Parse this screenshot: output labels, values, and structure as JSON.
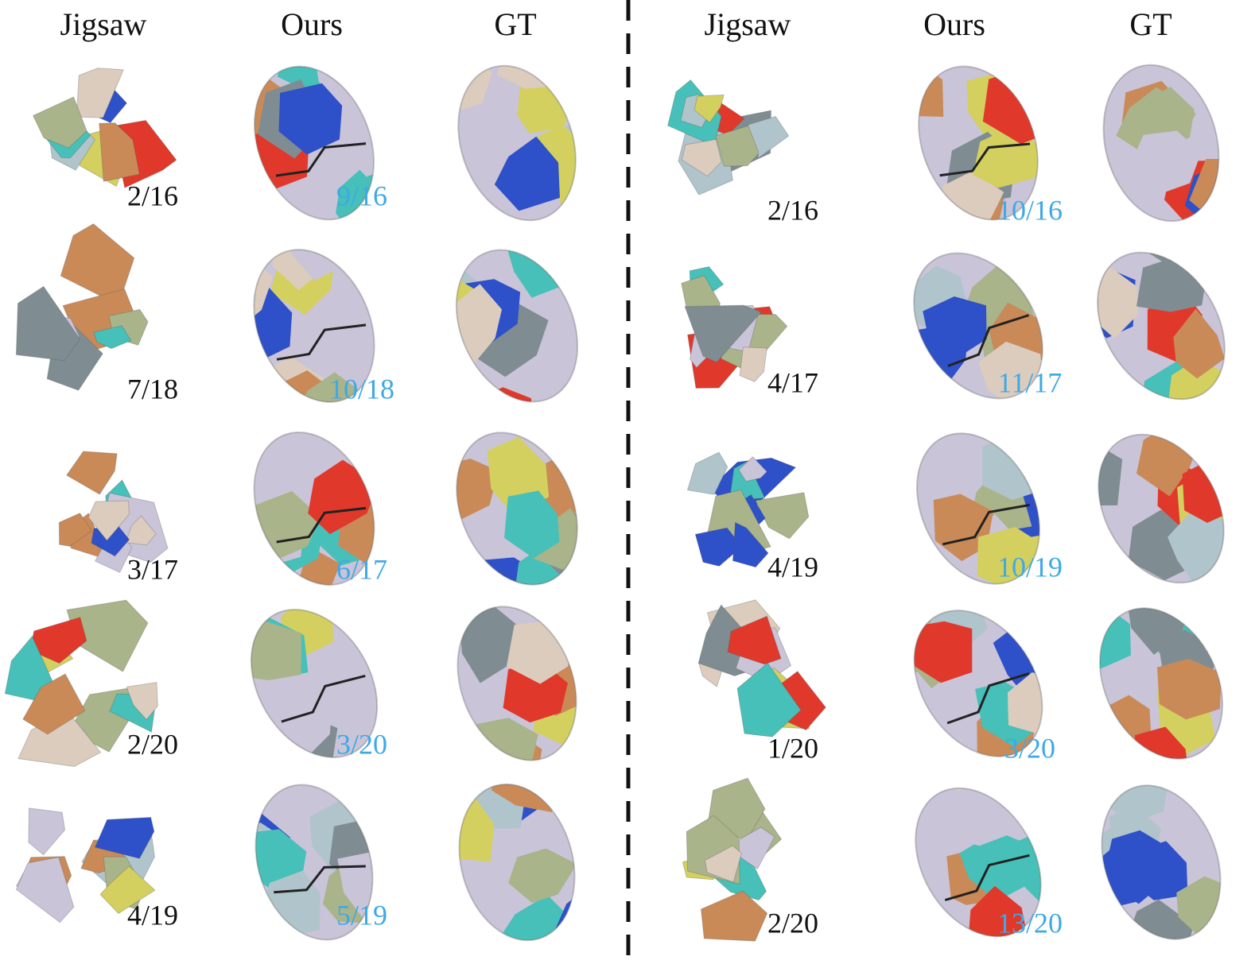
{
  "panels": [
    {
      "headers": [
        "Jigsaw",
        "Ours",
        "GT"
      ],
      "rows": [
        {
          "jigsaw": "2/16",
          "ours": "9/16"
        },
        {
          "jigsaw": "7/18",
          "ours": "10/18"
        },
        {
          "jigsaw": "3/17",
          "ours": "6/17"
        },
        {
          "jigsaw": "2/20",
          "ours": "3/20"
        },
        {
          "jigsaw": "4/19",
          "ours": "5/19"
        }
      ]
    },
    {
      "headers": [
        "Jigsaw",
        "Ours",
        "GT"
      ],
      "rows": [
        {
          "jigsaw": "2/16",
          "ours": "10/16"
        },
        {
          "jigsaw": "4/17",
          "ours": "11/17"
        },
        {
          "jigsaw": "4/19",
          "ours": "10/19"
        },
        {
          "jigsaw": "1/20",
          "ours": "3/20"
        },
        {
          "jigsaw": "2/20",
          "ours": "13/20"
        }
      ]
    }
  ]
}
